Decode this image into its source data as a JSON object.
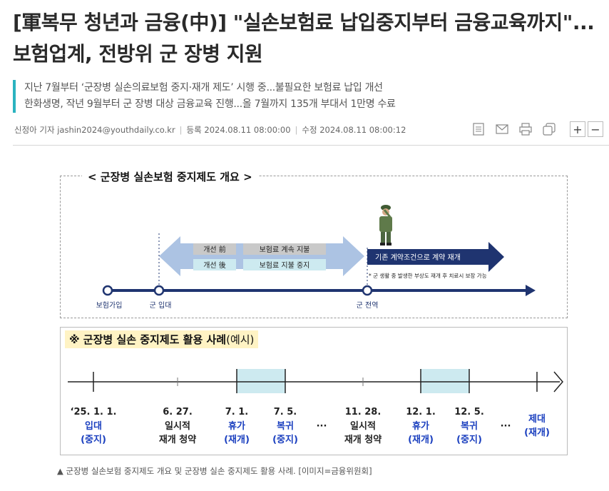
{
  "article": {
    "headline": "[軍복무 청년과 금융(中)] \"실손보험료 납입중지부터 금융교육까지\"...보험업계, 전방위 군 장병 지원",
    "subheads": [
      "지난 7월부터 ‘군장병 실손의료보험 중지·재개 제도’ 시행 중...불필요한 보험료 납입 개선",
      "한화생명, 작년 9월부터 군 장병 대상 금융교육 진행...올 7월까지 135개 부대서 1만명 수료"
    ],
    "meta": {
      "author": "신정아 기자 jashin2024@youthdaily.co.kr",
      "registered_label": "등록",
      "registered": "2024.08.11 08:00:00",
      "modified_label": "수정",
      "modified": "2024.08.11 08:00:12"
    },
    "tools": {
      "icons": [
        "article-icon",
        "email-icon",
        "print-icon",
        "copy-icon"
      ],
      "zoom_in": "+",
      "zoom_out": "−"
    },
    "caption": "▲ 군장병 실손보험 중지제도 개요 및 군장병 실손 중지제도 활용 사례. [이미지=금융위원회]"
  },
  "figure": {
    "overview": {
      "title": "< 군장병 실손보험 중지제도 개요 >",
      "rows": [
        {
          "label": "개선 前",
          "value": "보험료 계속 지불"
        },
        {
          "label": "개선 後",
          "value": "보험료 지불 중지"
        }
      ],
      "resume_text": "기존 계약조건으로 계약 재개",
      "note": "* 군 생활 중 발생한 부상도 재개 후 치료시 보장 가능",
      "timeline_labels": [
        "보험가입",
        "군 입대",
        "군 전역"
      ]
    },
    "example": {
      "title": "※ 군장병 실손 중지제도 활용 사례",
      "title_suffix": "(예시)",
      "events": [
        {
          "date": "‘25. 1. 1.",
          "lines": [
            "입대",
            "(중지)"
          ],
          "tone": "blue"
        },
        {
          "date": "6. 27.",
          "lines": [
            "일시적",
            "재개 청약"
          ],
          "tone": "dark"
        },
        {
          "date": "7. 1.",
          "lines": [
            "휴가",
            "(재개)"
          ],
          "tone": "blue"
        },
        {
          "date": "7. 5.",
          "lines": [
            "복귀",
            "(중지)"
          ],
          "tone": "blue"
        },
        {
          "date": "",
          "lines": [
            "···"
          ],
          "tone": "dark"
        },
        {
          "date": "11. 28.",
          "lines": [
            "일시적",
            "재개 청약"
          ],
          "tone": "dark"
        },
        {
          "date": "12. 1.",
          "lines": [
            "휴가",
            "(재개)"
          ],
          "tone": "blue"
        },
        {
          "date": "12. 5.",
          "lines": [
            "복귀",
            "(중지)"
          ],
          "tone": "blue"
        },
        {
          "date": "",
          "lines": [
            "···"
          ],
          "tone": "dark"
        },
        {
          "date": "",
          "lines": [
            "제대",
            "(재개)"
          ],
          "tone": "blue"
        }
      ]
    },
    "colors": {
      "navy": "#1f3470",
      "arrow_blue": "#9db9de",
      "teal_fill": "#cdeaf0",
      "blue_text": "#1a3fbf",
      "highlight": "#fff3c4",
      "accent_bar": "#2bb3c0"
    }
  }
}
